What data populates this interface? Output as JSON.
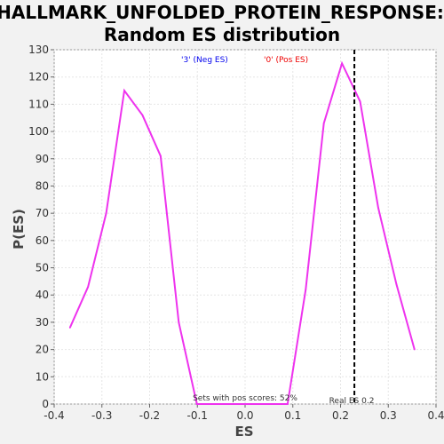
{
  "chart_data": {
    "type": "line",
    "title_line1": "HALLMARK_UNFOLDED_PROTEIN_RESPONSE:",
    "title_line2": "Random ES distribution",
    "xlabel": "ES",
    "ylabel": "P(ES)",
    "xlim": [
      -0.4,
      0.4
    ],
    "ylim": [
      0,
      130
    ],
    "xticks": [
      "-0.4",
      "-0.3",
      "-0.2",
      "-0.1",
      "0.0",
      "0.1",
      "0.2",
      "0.3",
      "0.4"
    ],
    "yticks": [
      "0",
      "10",
      "20",
      "30",
      "40",
      "50",
      "60",
      "70",
      "80",
      "90",
      "100",
      "110",
      "120",
      "130"
    ],
    "grid": true,
    "series": [
      {
        "color": "#ee33ee",
        "x": [
          -0.367,
          -0.329,
          -0.291,
          -0.253,
          -0.215,
          -0.177,
          -0.139,
          -0.101,
          -0.063,
          -0.025,
          0.013,
          0.051,
          0.089,
          0.127,
          0.165,
          0.203,
          0.241,
          0.279,
          0.317,
          0.355
        ],
        "y": [
          28,
          43,
          70,
          115,
          106,
          91,
          30,
          0,
          0,
          0,
          0,
          0,
          0,
          42,
          103,
          125,
          111,
          72,
          44,
          20
        ]
      }
    ],
    "legend": [
      {
        "label": "'3' (Neg ES)",
        "color": "#0000ee"
      },
      {
        "label": "'0' (Pos ES)",
        "color": "#ee0000"
      }
    ],
    "real_es": 0.229,
    "real_es_label": "Real ES 0.2",
    "pos_scores_label": "Sets with pos scores: 52%"
  }
}
